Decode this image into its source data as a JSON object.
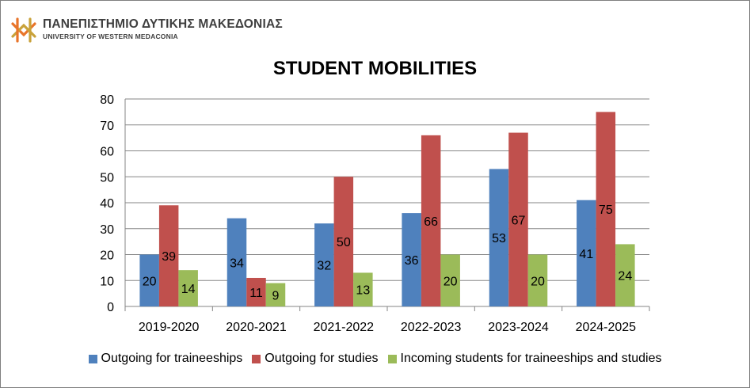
{
  "header": {
    "university_name_gr": "ΠΑΝΕΠΙΣΤΗΜΙΟ ΔΥΤΙΚΗΣ ΜΑΚΕΔΟΝΙΑΣ",
    "university_name_en": "UNIVERSITY OF WESTERN MEDACONIA",
    "logo_colors": [
      "#e8742a",
      "#c9a23a"
    ]
  },
  "chart_data": {
    "type": "bar",
    "title": "STUDENT MOBILITIES",
    "xlabel": "",
    "ylabel": "",
    "categories": [
      "2019-2020",
      "2020-2021",
      "2021-2022",
      "2022-2023",
      "2023-2024",
      "2024-2025"
    ],
    "series": [
      {
        "name": "Outgoing for traineeships",
        "color": "#4f81bd",
        "values": [
          20,
          34,
          32,
          36,
          53,
          41
        ]
      },
      {
        "name": "Outgoing for studies",
        "color": "#c0504d",
        "values": [
          39,
          11,
          50,
          66,
          67,
          75
        ]
      },
      {
        "name": "Incoming students for traineeships and studies",
        "color": "#9bbb59",
        "values": [
          14,
          9,
          13,
          20,
          20,
          24
        ]
      }
    ],
    "ylim": [
      0,
      80
    ],
    "yticks": [
      0,
      10,
      20,
      30,
      40,
      50,
      60,
      70,
      80
    ],
    "grid": true,
    "data_labels": true,
    "legend_position": "bottom"
  }
}
